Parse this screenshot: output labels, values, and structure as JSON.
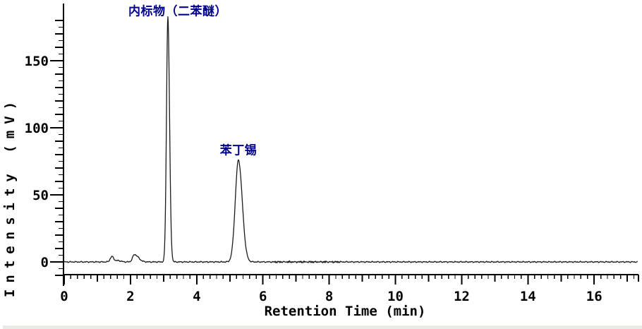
{
  "chart_data": {
    "type": "line",
    "chart_kind": "chromatogram",
    "title": "",
    "xlabel": "Retention Time (min)",
    "ylabel": "Intensity (mV)",
    "x_range": [
      0,
      17.34
    ],
    "y_range": [
      -18,
      192
    ],
    "x_major_ticks": [
      0,
      2,
      4,
      6,
      8,
      10,
      12,
      14,
      16
    ],
    "x_tick_labels": [
      "0",
      "2",
      "4",
      "6",
      "8",
      "10",
      "12",
      "14",
      "16"
    ],
    "x_minor_step": 0.2,
    "y_major_ticks": [
      0,
      50,
      100,
      150
    ],
    "y_tick_labels": [
      "0",
      "50",
      "100",
      "150"
    ],
    "y_minor_step": 5,
    "grid": false,
    "legend": false,
    "background_color": "#ffffff",
    "axis_color": "#000000",
    "trace_color": "#1c1c1c",
    "annotation_color": "#00008b",
    "baseline_mV": 0,
    "noise_mV": 0.4,
    "noisy_regions": [
      {
        "from_min": 6.3,
        "to_min": 8.35,
        "extra_noise_mV": 0.5
      }
    ],
    "peaks": [
      {
        "rt_min": 1.44,
        "height_mV": 4.0,
        "sigma_l": 0.05,
        "sigma_r": 0.055,
        "label": ""
      },
      {
        "rt_min": 1.62,
        "height_mV": 1.0,
        "sigma_l": 0.07,
        "sigma_r": 0.09,
        "label": ""
      },
      {
        "rt_min": 2.12,
        "height_mV": 5.5,
        "sigma_l": 0.055,
        "sigma_r": 0.12,
        "label": ""
      },
      {
        "rt_min": 3.13,
        "height_mV": 183.0,
        "sigma_l": 0.042,
        "sigma_r": 0.05,
        "label": "内标物（二苯醚）"
      },
      {
        "rt_min": 5.26,
        "height_mV": 76.0,
        "sigma_l": 0.095,
        "sigma_r": 0.115,
        "label": "苯丁锡"
      }
    ],
    "annotations": [
      {
        "text": "内标物（二苯醚）",
        "cx": 252,
        "cy": 14
      },
      {
        "text": "苯丁锡",
        "cx": 338,
        "cy": 211
      }
    ]
  }
}
